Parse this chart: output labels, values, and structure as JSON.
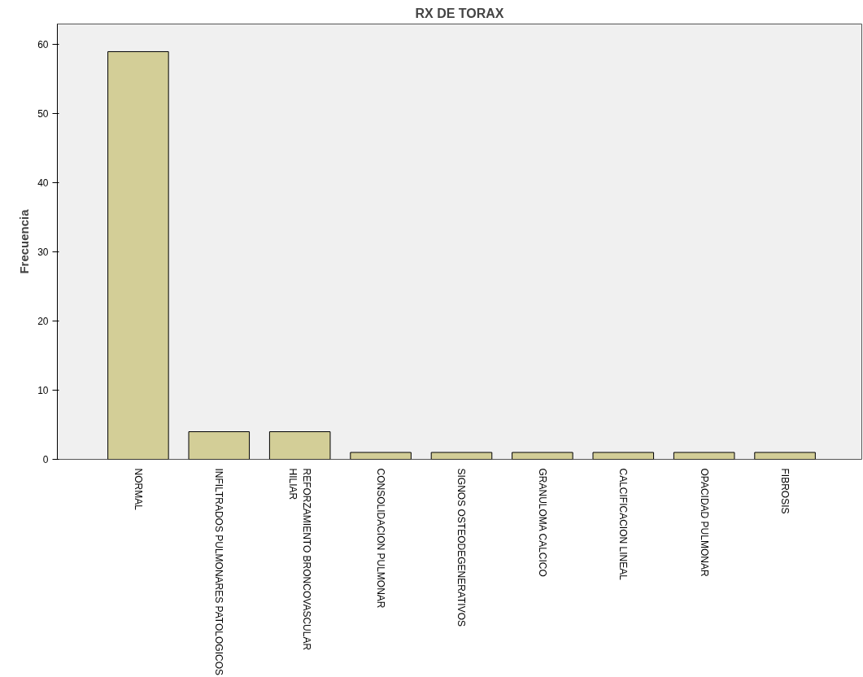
{
  "chart_data": {
    "type": "bar",
    "title": "RX DE TORAX",
    "ylabel": "Frecuencia",
    "categories": [
      "NORMAL",
      "INFILTRADOS PULMONARES PATOLOGICOS",
      "REFORZAMIENTO BRONCOVASCULAR\nHILIAR",
      "CONSOLIDACION PULMONAR",
      "SIGNOS OSTEODEGENERATIVOS",
      "GRANULOMA CALCICO",
      "CALCIFICACION LINEAL",
      "OPACIDAD PULMONAR",
      "FIBROSIS"
    ],
    "values": [
      59,
      4,
      4,
      1,
      1,
      1,
      1,
      1,
      1
    ],
    "color": "#d3ce97",
    "ylim": [
      0,
      63
    ],
    "yticks": [
      0,
      10,
      20,
      30,
      40,
      50,
      60
    ],
    "grid": false
  }
}
